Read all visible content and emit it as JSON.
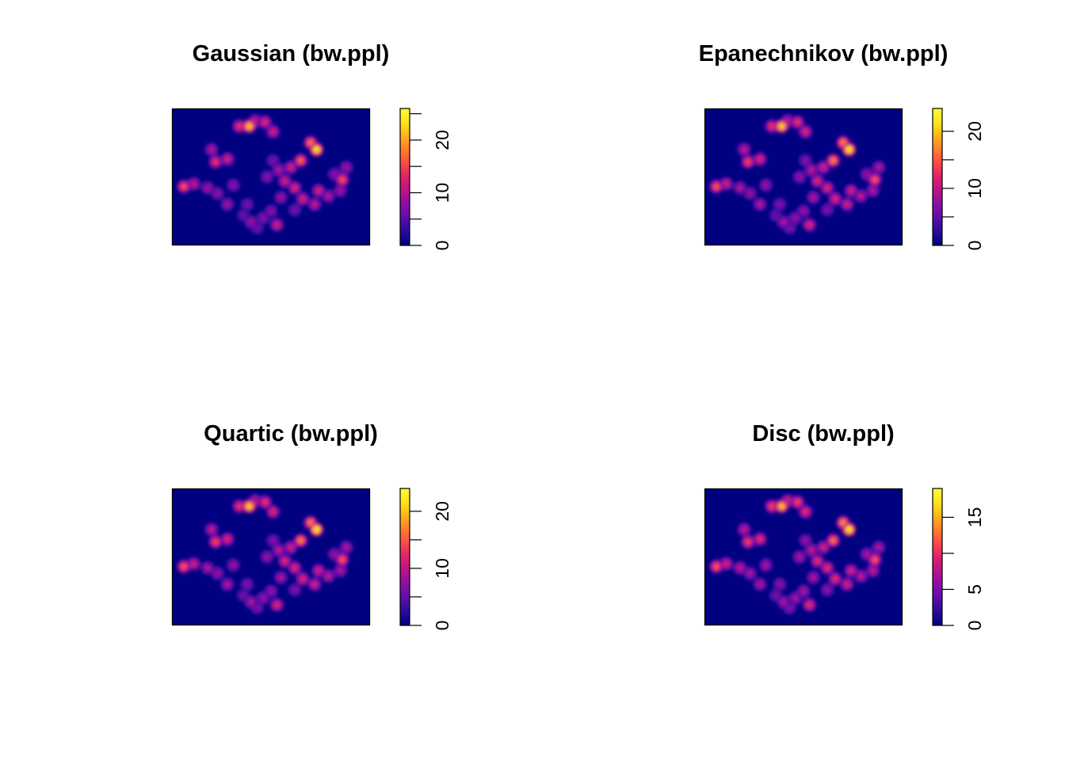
{
  "palette": {
    "background": "#000080",
    "colorbar_stops": [
      "#000080",
      "#2a0a9c",
      "#5c0ea8",
      "#8c0ea4",
      "#b8148a",
      "#e0206a",
      "#f84a48",
      "#ff7e2a",
      "#ffb41a",
      "#ffe41c",
      "#fff838"
    ]
  },
  "chart_data": [
    {
      "type": "heatmap",
      "title": "Gaussian (bw.ppl)",
      "colorbar": {
        "min": 0,
        "max": 26,
        "ticks": [
          0,
          10,
          20
        ],
        "minor_ticks": [
          5,
          15,
          25
        ]
      },
      "hotspots": [
        {
          "x": 0.39,
          "y": 0.87,
          "v": 22
        },
        {
          "x": 0.34,
          "y": 0.87,
          "v": 14
        },
        {
          "x": 0.47,
          "y": 0.9,
          "v": 13
        },
        {
          "x": 0.51,
          "y": 0.83,
          "v": 12
        },
        {
          "x": 0.42,
          "y": 0.91,
          "v": 11
        },
        {
          "x": 0.73,
          "y": 0.7,
          "v": 24
        },
        {
          "x": 0.7,
          "y": 0.75,
          "v": 18
        },
        {
          "x": 0.65,
          "y": 0.62,
          "v": 17
        },
        {
          "x": 0.6,
          "y": 0.57,
          "v": 12
        },
        {
          "x": 0.22,
          "y": 0.61,
          "v": 14
        },
        {
          "x": 0.28,
          "y": 0.63,
          "v": 12
        },
        {
          "x": 0.2,
          "y": 0.7,
          "v": 10
        },
        {
          "x": 0.06,
          "y": 0.43,
          "v": 16
        },
        {
          "x": 0.11,
          "y": 0.45,
          "v": 11
        },
        {
          "x": 0.18,
          "y": 0.42,
          "v": 9
        },
        {
          "x": 0.23,
          "y": 0.38,
          "v": 8
        },
        {
          "x": 0.28,
          "y": 0.3,
          "v": 9
        },
        {
          "x": 0.31,
          "y": 0.44,
          "v": 8
        },
        {
          "x": 0.38,
          "y": 0.3,
          "v": 7
        },
        {
          "x": 0.54,
          "y": 0.55,
          "v": 10
        },
        {
          "x": 0.57,
          "y": 0.47,
          "v": 12
        },
        {
          "x": 0.62,
          "y": 0.42,
          "v": 13
        },
        {
          "x": 0.66,
          "y": 0.34,
          "v": 12
        },
        {
          "x": 0.72,
          "y": 0.3,
          "v": 11
        },
        {
          "x": 0.79,
          "y": 0.36,
          "v": 10
        },
        {
          "x": 0.74,
          "y": 0.4,
          "v": 12
        },
        {
          "x": 0.85,
          "y": 0.4,
          "v": 9
        },
        {
          "x": 0.86,
          "y": 0.48,
          "v": 16
        },
        {
          "x": 0.88,
          "y": 0.57,
          "v": 9
        },
        {
          "x": 0.82,
          "y": 0.52,
          "v": 8
        },
        {
          "x": 0.4,
          "y": 0.17,
          "v": 9
        },
        {
          "x": 0.46,
          "y": 0.2,
          "v": 8
        },
        {
          "x": 0.53,
          "y": 0.15,
          "v": 12
        },
        {
          "x": 0.43,
          "y": 0.13,
          "v": 7
        },
        {
          "x": 0.5,
          "y": 0.25,
          "v": 8
        },
        {
          "x": 0.55,
          "y": 0.35,
          "v": 9
        },
        {
          "x": 0.48,
          "y": 0.5,
          "v": 8
        },
        {
          "x": 0.51,
          "y": 0.62,
          "v": 7
        },
        {
          "x": 0.36,
          "y": 0.22,
          "v": 6
        },
        {
          "x": 0.62,
          "y": 0.26,
          "v": 7
        }
      ]
    },
    {
      "type": "heatmap",
      "title": "Epanechnikov (bw.ppl)",
      "colorbar": {
        "min": 0,
        "max": 24,
        "ticks": [
          0,
          10,
          20
        ],
        "minor_ticks": [
          5,
          15
        ]
      },
      "hotspots": [
        {
          "x": 0.39,
          "y": 0.87,
          "v": 21
        },
        {
          "x": 0.34,
          "y": 0.87,
          "v": 13
        },
        {
          "x": 0.47,
          "y": 0.9,
          "v": 13
        },
        {
          "x": 0.51,
          "y": 0.83,
          "v": 12
        },
        {
          "x": 0.42,
          "y": 0.91,
          "v": 10
        },
        {
          "x": 0.73,
          "y": 0.7,
          "v": 23
        },
        {
          "x": 0.7,
          "y": 0.75,
          "v": 17
        },
        {
          "x": 0.65,
          "y": 0.62,
          "v": 17
        },
        {
          "x": 0.6,
          "y": 0.57,
          "v": 11
        },
        {
          "x": 0.22,
          "y": 0.61,
          "v": 14
        },
        {
          "x": 0.28,
          "y": 0.63,
          "v": 12
        },
        {
          "x": 0.2,
          "y": 0.7,
          "v": 10
        },
        {
          "x": 0.06,
          "y": 0.43,
          "v": 15
        },
        {
          "x": 0.11,
          "y": 0.45,
          "v": 11
        },
        {
          "x": 0.18,
          "y": 0.42,
          "v": 9
        },
        {
          "x": 0.23,
          "y": 0.38,
          "v": 8
        },
        {
          "x": 0.28,
          "y": 0.3,
          "v": 9
        },
        {
          "x": 0.31,
          "y": 0.44,
          "v": 8
        },
        {
          "x": 0.38,
          "y": 0.3,
          "v": 7
        },
        {
          "x": 0.54,
          "y": 0.55,
          "v": 10
        },
        {
          "x": 0.57,
          "y": 0.47,
          "v": 12
        },
        {
          "x": 0.62,
          "y": 0.42,
          "v": 12
        },
        {
          "x": 0.66,
          "y": 0.34,
          "v": 12
        },
        {
          "x": 0.72,
          "y": 0.3,
          "v": 11
        },
        {
          "x": 0.79,
          "y": 0.36,
          "v": 10
        },
        {
          "x": 0.74,
          "y": 0.4,
          "v": 11
        },
        {
          "x": 0.85,
          "y": 0.4,
          "v": 9
        },
        {
          "x": 0.86,
          "y": 0.48,
          "v": 15
        },
        {
          "x": 0.88,
          "y": 0.57,
          "v": 9
        },
        {
          "x": 0.82,
          "y": 0.52,
          "v": 8
        },
        {
          "x": 0.4,
          "y": 0.17,
          "v": 9
        },
        {
          "x": 0.46,
          "y": 0.2,
          "v": 8
        },
        {
          "x": 0.53,
          "y": 0.15,
          "v": 12
        },
        {
          "x": 0.43,
          "y": 0.13,
          "v": 7
        },
        {
          "x": 0.5,
          "y": 0.25,
          "v": 8
        },
        {
          "x": 0.55,
          "y": 0.35,
          "v": 9
        },
        {
          "x": 0.48,
          "y": 0.5,
          "v": 8
        },
        {
          "x": 0.51,
          "y": 0.62,
          "v": 7
        },
        {
          "x": 0.36,
          "y": 0.22,
          "v": 6
        },
        {
          "x": 0.62,
          "y": 0.26,
          "v": 7
        }
      ]
    },
    {
      "type": "heatmap",
      "title": "Quartic (bw.ppl)",
      "colorbar": {
        "min": 0,
        "max": 24,
        "ticks": [
          0,
          10,
          20
        ],
        "minor_ticks": [
          5,
          15
        ]
      },
      "hotspots": [
        {
          "x": 0.39,
          "y": 0.87,
          "v": 21
        },
        {
          "x": 0.34,
          "y": 0.87,
          "v": 13
        },
        {
          "x": 0.47,
          "y": 0.9,
          "v": 13
        },
        {
          "x": 0.51,
          "y": 0.83,
          "v": 12
        },
        {
          "x": 0.42,
          "y": 0.91,
          "v": 10
        },
        {
          "x": 0.73,
          "y": 0.7,
          "v": 23
        },
        {
          "x": 0.7,
          "y": 0.75,
          "v": 17
        },
        {
          "x": 0.65,
          "y": 0.62,
          "v": 17
        },
        {
          "x": 0.6,
          "y": 0.57,
          "v": 11
        },
        {
          "x": 0.22,
          "y": 0.61,
          "v": 14
        },
        {
          "x": 0.28,
          "y": 0.63,
          "v": 12
        },
        {
          "x": 0.2,
          "y": 0.7,
          "v": 10
        },
        {
          "x": 0.06,
          "y": 0.43,
          "v": 15
        },
        {
          "x": 0.11,
          "y": 0.45,
          "v": 11
        },
        {
          "x": 0.18,
          "y": 0.42,
          "v": 9
        },
        {
          "x": 0.23,
          "y": 0.38,
          "v": 8
        },
        {
          "x": 0.28,
          "y": 0.3,
          "v": 9
        },
        {
          "x": 0.31,
          "y": 0.44,
          "v": 8
        },
        {
          "x": 0.38,
          "y": 0.3,
          "v": 7
        },
        {
          "x": 0.54,
          "y": 0.55,
          "v": 10
        },
        {
          "x": 0.57,
          "y": 0.47,
          "v": 12
        },
        {
          "x": 0.62,
          "y": 0.42,
          "v": 12
        },
        {
          "x": 0.66,
          "y": 0.34,
          "v": 12
        },
        {
          "x": 0.72,
          "y": 0.3,
          "v": 11
        },
        {
          "x": 0.79,
          "y": 0.36,
          "v": 10
        },
        {
          "x": 0.74,
          "y": 0.4,
          "v": 11
        },
        {
          "x": 0.85,
          "y": 0.4,
          "v": 9
        },
        {
          "x": 0.86,
          "y": 0.48,
          "v": 15
        },
        {
          "x": 0.88,
          "y": 0.57,
          "v": 9
        },
        {
          "x": 0.82,
          "y": 0.52,
          "v": 8
        },
        {
          "x": 0.4,
          "y": 0.17,
          "v": 9
        },
        {
          "x": 0.46,
          "y": 0.2,
          "v": 8
        },
        {
          "x": 0.53,
          "y": 0.15,
          "v": 12
        },
        {
          "x": 0.43,
          "y": 0.13,
          "v": 7
        },
        {
          "x": 0.5,
          "y": 0.25,
          "v": 8
        },
        {
          "x": 0.55,
          "y": 0.35,
          "v": 9
        },
        {
          "x": 0.48,
          "y": 0.5,
          "v": 8
        },
        {
          "x": 0.51,
          "y": 0.62,
          "v": 7
        },
        {
          "x": 0.36,
          "y": 0.22,
          "v": 6
        },
        {
          "x": 0.62,
          "y": 0.26,
          "v": 7
        }
      ]
    },
    {
      "type": "heatmap",
      "title": "Disc (bw.ppl)",
      "colorbar": {
        "min": 0,
        "max": 19,
        "ticks": [
          0,
          5,
          15
        ],
        "minor_ticks": [
          10
        ]
      },
      "hotspots": [
        {
          "x": 0.39,
          "y": 0.87,
          "v": 16
        },
        {
          "x": 0.34,
          "y": 0.87,
          "v": 11
        },
        {
          "x": 0.47,
          "y": 0.9,
          "v": 11
        },
        {
          "x": 0.51,
          "y": 0.83,
          "v": 10
        },
        {
          "x": 0.42,
          "y": 0.91,
          "v": 9
        },
        {
          "x": 0.73,
          "y": 0.7,
          "v": 18
        },
        {
          "x": 0.7,
          "y": 0.75,
          "v": 14
        },
        {
          "x": 0.65,
          "y": 0.62,
          "v": 13
        },
        {
          "x": 0.6,
          "y": 0.57,
          "v": 9
        },
        {
          "x": 0.22,
          "y": 0.61,
          "v": 11
        },
        {
          "x": 0.28,
          "y": 0.63,
          "v": 10
        },
        {
          "x": 0.2,
          "y": 0.7,
          "v": 8
        },
        {
          "x": 0.06,
          "y": 0.43,
          "v": 12
        },
        {
          "x": 0.11,
          "y": 0.45,
          "v": 9
        },
        {
          "x": 0.18,
          "y": 0.42,
          "v": 8
        },
        {
          "x": 0.23,
          "y": 0.38,
          "v": 7
        },
        {
          "x": 0.28,
          "y": 0.3,
          "v": 7
        },
        {
          "x": 0.31,
          "y": 0.44,
          "v": 7
        },
        {
          "x": 0.38,
          "y": 0.3,
          "v": 6
        },
        {
          "x": 0.54,
          "y": 0.55,
          "v": 8
        },
        {
          "x": 0.57,
          "y": 0.47,
          "v": 10
        },
        {
          "x": 0.62,
          "y": 0.42,
          "v": 10
        },
        {
          "x": 0.66,
          "y": 0.34,
          "v": 10
        },
        {
          "x": 0.72,
          "y": 0.3,
          "v": 9
        },
        {
          "x": 0.79,
          "y": 0.36,
          "v": 8
        },
        {
          "x": 0.74,
          "y": 0.4,
          "v": 9
        },
        {
          "x": 0.85,
          "y": 0.4,
          "v": 8
        },
        {
          "x": 0.86,
          "y": 0.48,
          "v": 12
        },
        {
          "x": 0.88,
          "y": 0.57,
          "v": 7
        },
        {
          "x": 0.82,
          "y": 0.52,
          "v": 7
        },
        {
          "x": 0.4,
          "y": 0.17,
          "v": 7
        },
        {
          "x": 0.46,
          "y": 0.2,
          "v": 7
        },
        {
          "x": 0.53,
          "y": 0.15,
          "v": 10
        },
        {
          "x": 0.43,
          "y": 0.13,
          "v": 6
        },
        {
          "x": 0.5,
          "y": 0.25,
          "v": 7
        },
        {
          "x": 0.55,
          "y": 0.35,
          "v": 7
        },
        {
          "x": 0.48,
          "y": 0.5,
          "v": 7
        },
        {
          "x": 0.51,
          "y": 0.62,
          "v": 6
        },
        {
          "x": 0.36,
          "y": 0.22,
          "v": 5
        },
        {
          "x": 0.62,
          "y": 0.26,
          "v": 6
        }
      ]
    }
  ]
}
